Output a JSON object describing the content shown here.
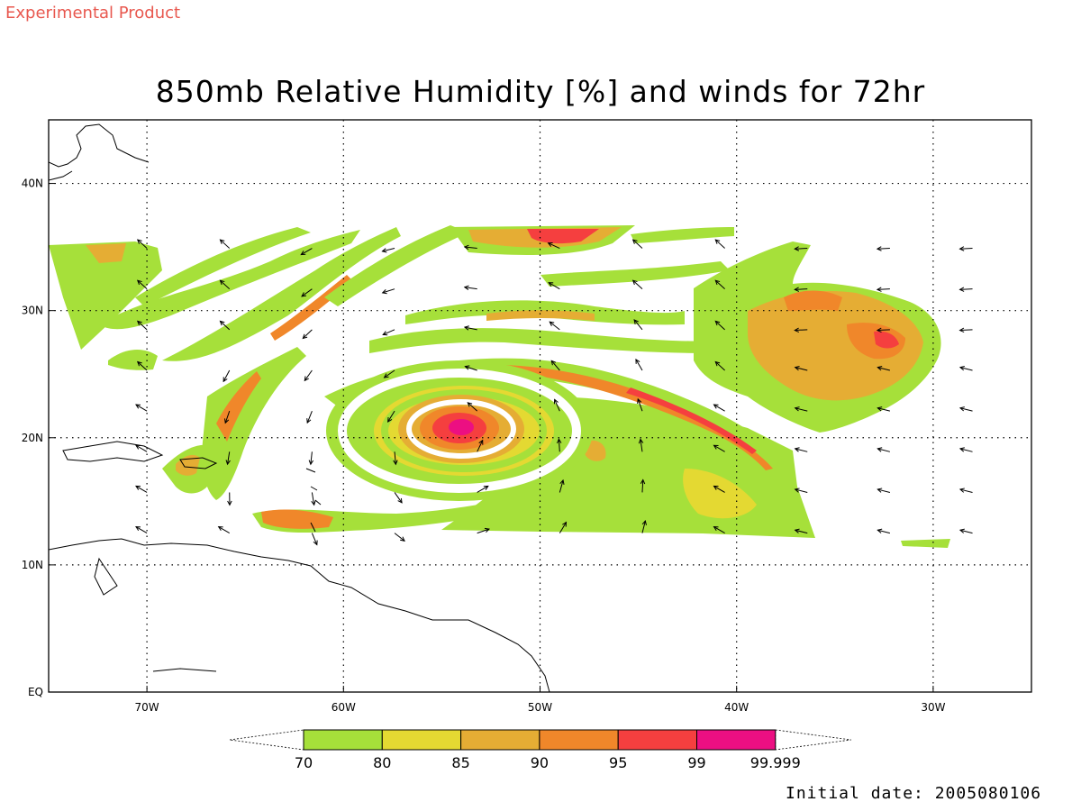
{
  "header": {
    "experimental_label": "Experimental Product",
    "title": "850mb Relative Humidity [%] and winds for 72hr"
  },
  "footer": {
    "initial_date": "Initial date: 2005080106"
  },
  "map": {
    "lon_range": [
      -75,
      -25
    ],
    "lat_range": [
      0,
      45
    ],
    "lon_ticks": [
      {
        "value": -70,
        "label": "70W"
      },
      {
        "value": -60,
        "label": "60W"
      },
      {
        "value": -50,
        "label": "50W"
      },
      {
        "value": -40,
        "label": "40W"
      },
      {
        "value": -30,
        "label": "30W"
      }
    ],
    "lat_ticks": [
      {
        "value": 0,
        "label": "EQ"
      },
      {
        "value": 10,
        "label": "10N"
      },
      {
        "value": 20,
        "label": "20N"
      },
      {
        "value": 30,
        "label": "30N"
      },
      {
        "value": 40,
        "label": "40N"
      }
    ],
    "grid": "dotted",
    "cyclone_center": {
      "lon": -54.5,
      "lat": 20.5
    }
  },
  "colorbar": {
    "levels": [
      "70",
      "80",
      "85",
      "90",
      "95",
      "99",
      "99.999"
    ],
    "colors": [
      "#a6e03a",
      "#e4d932",
      "#e5ad34",
      "#f0872a",
      "#f53f3f",
      "#ec0f82"
    ]
  },
  "style": {
    "humidity_colors": {
      "70": "#a6e03a",
      "80": "#e4d932",
      "85": "#e5ad34",
      "90": "#f0872a",
      "95": "#f53f3f",
      "99": "#ec0f82"
    },
    "grid_color": "#000000",
    "coast_color": "#000000"
  }
}
